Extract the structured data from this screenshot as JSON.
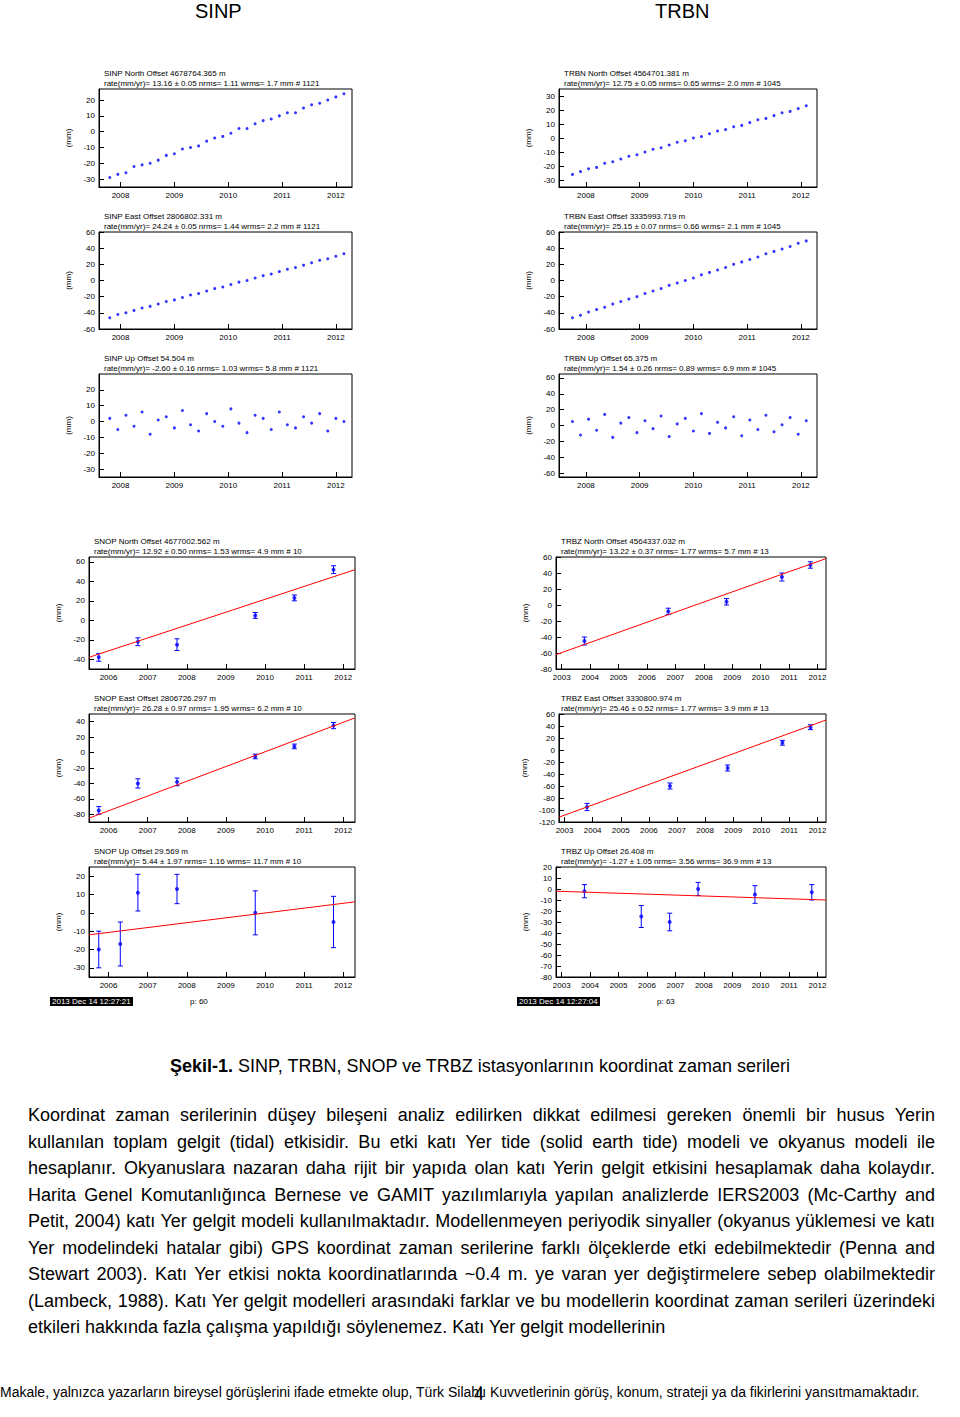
{
  "headers": [
    "SINP",
    "TRBN"
  ],
  "chart_data": [
    {
      "type": "scatter",
      "title": [
        "SINP North Offset 4678764.365 m",
        "rate(mm/yr)= 13.16 ± 0.05 nrms= 1.11 wrms= 1.7 mm # 1121"
      ],
      "y_label": "(mm)",
      "color": "#0000ff",
      "x": [
        2007.8,
        2007.95,
        2008.1,
        2008.25,
        2008.4,
        2008.55,
        2008.7,
        2008.85,
        2009.0,
        2009.15,
        2009.3,
        2009.45,
        2009.6,
        2009.75,
        2009.9,
        2010.05,
        2010.2,
        2010.35,
        2010.5,
        2010.65,
        2010.8,
        2010.95,
        2011.1,
        2011.25,
        2011.4,
        2011.55,
        2011.7,
        2011.85,
        2012.0,
        2012.15
      ],
      "values": [
        -29,
        -27,
        -26,
        -22,
        -21,
        -20,
        -18,
        -15,
        -14,
        -11,
        -10,
        -9,
        -6,
        -4,
        -3,
        -1,
        2,
        2,
        5,
        7,
        8,
        10,
        12,
        12,
        15,
        17,
        18,
        20,
        22,
        24
      ],
      "xlim": [
        2007.6,
        2012.3
      ],
      "xticks": [
        2008,
        2009,
        2010,
        2011,
        2012
      ],
      "ylim": [
        -35,
        27
      ],
      "yticks": [
        -30,
        -20,
        -10,
        0,
        10,
        20
      ]
    },
    {
      "type": "scatter",
      "title": [
        "SINP East Offset 2806802.331 m",
        "rate(mm/yr)= 24.24 ± 0.05 nrms= 1.44 wrms= 2.2 mm # 1121"
      ],
      "y_label": "(mm)",
      "color": "#0000ff",
      "x": [
        2007.8,
        2007.95,
        2008.1,
        2008.25,
        2008.4,
        2008.55,
        2008.7,
        2008.85,
        2009.0,
        2009.15,
        2009.3,
        2009.45,
        2009.6,
        2009.75,
        2009.9,
        2010.05,
        2010.2,
        2010.35,
        2010.5,
        2010.65,
        2010.8,
        2010.95,
        2011.1,
        2011.25,
        2011.4,
        2011.55,
        2011.7,
        2011.85,
        2012.0,
        2012.15
      ],
      "values": [
        -46,
        -42,
        -40,
        -37,
        -34,
        -32,
        -29,
        -26,
        -24,
        -21,
        -18,
        -16,
        -13,
        -10,
        -8,
        -5,
        -2,
        0,
        3,
        6,
        8,
        11,
        14,
        16,
        19,
        22,
        25,
        27,
        30,
        33
      ],
      "xlim": [
        2007.6,
        2012.3
      ],
      "xticks": [
        2008,
        2009,
        2010,
        2011,
        2012
      ],
      "ylim": [
        -60,
        60
      ],
      "yticks": [
        -60,
        -40,
        -20,
        0,
        20,
        40,
        60
      ]
    },
    {
      "type": "scatter",
      "title": [
        "SINP Up Offset 54.504 m",
        "rate(mm/yr)= -2.60 ± 0.16 nrms= 1.03 wrms= 5.8 mm # 1121"
      ],
      "y_label": "(mm)",
      "color": "#0000ff",
      "x": [
        2007.8,
        2007.95,
        2008.1,
        2008.25,
        2008.4,
        2008.55,
        2008.7,
        2008.85,
        2009.0,
        2009.15,
        2009.3,
        2009.45,
        2009.6,
        2009.75,
        2009.9,
        2010.05,
        2010.2,
        2010.35,
        2010.5,
        2010.65,
        2010.8,
        2010.95,
        2011.1,
        2011.25,
        2011.4,
        2011.55,
        2011.7,
        2011.85,
        2012.0,
        2012.15
      ],
      "values": [
        2,
        -5,
        4,
        -3,
        6,
        -8,
        1,
        3,
        -4,
        7,
        -2,
        -6,
        5,
        0,
        -3,
        8,
        -1,
        -7,
        4,
        2,
        -5,
        6,
        -2,
        -4,
        3,
        -1,
        5,
        -6,
        2,
        0
      ],
      "xlim": [
        2007.6,
        2012.3
      ],
      "xticks": [
        2008,
        2009,
        2010,
        2011,
        2012
      ],
      "ylim": [
        -35,
        30
      ],
      "yticks": [
        -30,
        -20,
        -10,
        0,
        10,
        20
      ]
    },
    {
      "type": "scatter",
      "title": [
        "TRBN North Offset 4564701.381 m",
        "rate(mm/yr)= 12.75 ± 0.05 nrms= 0.65 wrms= 2.0 mm # 1045"
      ],
      "y_label": "(mm)",
      "color": "#0000ff",
      "x": [
        2007.75,
        2007.9,
        2008.05,
        2008.2,
        2008.35,
        2008.5,
        2008.65,
        2008.8,
        2008.95,
        2009.1,
        2009.25,
        2009.4,
        2009.55,
        2009.7,
        2009.85,
        2010.0,
        2010.15,
        2010.3,
        2010.45,
        2010.6,
        2010.75,
        2010.9,
        2011.05,
        2011.2,
        2011.35,
        2011.5,
        2011.65,
        2011.8,
        2011.95,
        2012.1
      ],
      "values": [
        -26,
        -24,
        -22,
        -21,
        -18,
        -17,
        -15,
        -13,
        -12,
        -10,
        -8,
        -7,
        -5,
        -3,
        -2,
        0,
        1,
        3,
        5,
        6,
        8,
        9,
        11,
        13,
        14,
        16,
        18,
        19,
        21,
        23
      ],
      "xlim": [
        2007.5,
        2012.3
      ],
      "xticks": [
        2008,
        2009,
        2010,
        2011,
        2012
      ],
      "ylim": [
        -35,
        35
      ],
      "yticks": [
        -30,
        -20,
        -10,
        0,
        10,
        20,
        30
      ]
    },
    {
      "type": "scatter",
      "title": [
        "TRBN East Offset 3335993.719 m",
        "rate(mm/yr)= 25.15 ± 0.07 nrms= 0.66 wrms= 2.1 mm # 1045"
      ],
      "y_label": "(mm)",
      "color": "#0000ff",
      "x": [
        2007.75,
        2007.9,
        2008.05,
        2008.2,
        2008.35,
        2008.5,
        2008.65,
        2008.8,
        2008.95,
        2009.1,
        2009.25,
        2009.4,
        2009.55,
        2009.7,
        2009.85,
        2010.0,
        2010.15,
        2010.3,
        2010.45,
        2010.6,
        2010.75,
        2010.9,
        2011.05,
        2011.2,
        2011.35,
        2011.5,
        2011.65,
        2011.8,
        2011.95,
        2012.1
      ],
      "values": [
        -46,
        -43,
        -39,
        -36,
        -33,
        -29,
        -26,
        -23,
        -20,
        -16,
        -13,
        -10,
        -6,
        -3,
        0,
        3,
        7,
        10,
        13,
        16,
        20,
        23,
        26,
        29,
        33,
        36,
        39,
        42,
        46,
        49
      ],
      "xlim": [
        2007.5,
        2012.3
      ],
      "xticks": [
        2008,
        2009,
        2010,
        2011,
        2012
      ],
      "ylim": [
        -60,
        60
      ],
      "yticks": [
        -60,
        -40,
        -20,
        0,
        20,
        40,
        60
      ]
    },
    {
      "type": "scatter",
      "title": [
        "TRBN Up Offset 65.375 m",
        "rate(mm/yr)= 1.54 ± 0.26 nrms= 0.89 wrms= 6.9 mm # 1045"
      ],
      "y_label": "(mm)",
      "color": "#0000ff",
      "x": [
        2007.75,
        2007.9,
        2008.05,
        2008.2,
        2008.35,
        2008.5,
        2008.65,
        2008.8,
        2008.95,
        2009.1,
        2009.25,
        2009.4,
        2009.55,
        2009.7,
        2009.85,
        2010.0,
        2010.15,
        2010.3,
        2010.45,
        2010.6,
        2010.75,
        2010.9,
        2011.05,
        2011.2,
        2011.35,
        2011.5,
        2011.65,
        2011.8,
        2011.95,
        2012.1
      ],
      "values": [
        5,
        -12,
        8,
        -6,
        14,
        -15,
        3,
        10,
        -9,
        6,
        -4,
        12,
        -14,
        2,
        9,
        -7,
        15,
        -10,
        4,
        -3,
        11,
        -13,
        7,
        -5,
        13,
        -8,
        1,
        10,
        -11,
        6
      ],
      "xlim": [
        2007.5,
        2012.3
      ],
      "xticks": [
        2008,
        2009,
        2010,
        2011,
        2012
      ],
      "ylim": [
        -65,
        65
      ],
      "yticks": [
        -60,
        -40,
        -20,
        0,
        20,
        40,
        60
      ]
    },
    {
      "type": "scatter",
      "title": [
        "SNOP North Offset 4677002.562 m",
        "rate(mm/yr)= 12.92 ± 0.50 nrms= 1.53 wrms= 4.9 mm # 10"
      ],
      "y_label": "(mm)",
      "color": "#0000ff",
      "x": [
        2005.75,
        2006.75,
        2007.75,
        2009.75,
        2010.75,
        2011.75
      ],
      "values": [
        -38,
        -22,
        -25,
        5,
        23,
        52
      ],
      "errors": [
        4,
        4,
        6,
        3,
        3,
        4
      ],
      "trend": {
        "x": [
          2005.5,
          2012.3
        ],
        "values": [
          -38,
          52
        ],
        "color": "#ff0000"
      },
      "xlim": [
        2005.5,
        2012.3
      ],
      "xticks": [
        2006,
        2007,
        2008,
        2009,
        2010,
        2011,
        2012
      ],
      "ylim": [
        -50,
        65
      ],
      "yticks": [
        -40,
        -20,
        0,
        20,
        40,
        60
      ]
    },
    {
      "type": "scatter",
      "title": [
        "SNOP East Offset 2806726.297 m",
        "rate(mm/yr)= 26.28 ± 0.97 nrms= 1.95 wrms= 6.2 mm # 10"
      ],
      "y_label": "(mm)",
      "color": "#0000ff",
      "x": [
        2005.75,
        2006.75,
        2007.75,
        2009.75,
        2010.75,
        2011.75
      ],
      "values": [
        -75,
        -40,
        -38,
        -5,
        8,
        35
      ],
      "errors": [
        5,
        6,
        5,
        3,
        3,
        4
      ],
      "trend": {
        "x": [
          2005.5,
          2012.3
        ],
        "values": [
          -85,
          45
        ],
        "color": "#ff0000"
      },
      "xlim": [
        2005.5,
        2012.3
      ],
      "xticks": [
        2006,
        2007,
        2008,
        2009,
        2010,
        2011,
        2012
      ],
      "ylim": [
        -90,
        50
      ],
      "yticks": [
        -80,
        -60,
        -40,
        -20,
        0,
        20,
        40
      ]
    },
    {
      "type": "scatter",
      "title": [
        "SNOP Up Offset 29.569 m",
        "rate(mm/yr)= 5.44 ± 1.97 nrms= 1.16 wrms= 11.7 mm # 10"
      ],
      "y_label": "(mm)",
      "color": "#0000ff",
      "x": [
        2005.75,
        2006.3,
        2006.75,
        2007.75,
        2009.75,
        2011.75
      ],
      "values": [
        -20,
        -17,
        11,
        13,
        0,
        -5
      ],
      "errors": [
        10,
        12,
        10,
        8,
        12,
        14
      ],
      "trend": {
        "x": [
          2005.5,
          2012.3
        ],
        "values": [
          -12,
          6
        ],
        "color": "#ff0000"
      },
      "xlim": [
        2005.5,
        2012.3
      ],
      "xticks": [
        2006,
        2007,
        2008,
        2009,
        2010,
        2011,
        2012
      ],
      "ylim": [
        -35,
        25
      ],
      "yticks": [
        -30,
        -20,
        -10,
        0,
        10,
        20
      ]
    },
    {
      "type": "scatter",
      "title": [
        "TRBZ North Offset 4564337.032 m",
        "rate(mm/yr)= 13.22 ± 0.37 nrms= 1.77 wrms= 5.7 mm # 13"
      ],
      "y_label": "(mm)",
      "color": "#0000ff",
      "x": [
        2003.8,
        2006.75,
        2008.8,
        2010.75,
        2011.75
      ],
      "values": [
        -45,
        -8,
        4,
        35,
        50
      ],
      "errors": [
        5,
        4,
        4,
        5,
        4
      ],
      "trend": {
        "x": [
          2002.8,
          2012.3
        ],
        "values": [
          -62,
          58
        ],
        "color": "#ff0000"
      },
      "xlim": [
        2002.8,
        2012.3
      ],
      "xticks": [
        2003,
        2004,
        2005,
        2006,
        2007,
        2008,
        2009,
        2010,
        2011,
        2012
      ],
      "ylim": [
        -80,
        60
      ],
      "yticks": [
        -80,
        -60,
        -40,
        -20,
        0,
        20,
        40,
        60
      ]
    },
    {
      "type": "scatter",
      "title": [
        "TRBZ East Offset 3330800.974 m",
        "rate(mm/yr)= 25.46 ± 0.52 nrms= 1.77 wrms= 3.9 mm # 13"
      ],
      "y_label": "(mm)",
      "color": "#0000ff",
      "x": [
        2003.8,
        2006.75,
        2008.8,
        2010.75,
        2011.75
      ],
      "values": [
        -95,
        -60,
        -30,
        12,
        38
      ],
      "errors": [
        6,
        5,
        5,
        4,
        4
      ],
      "trend": {
        "x": [
          2002.8,
          2012.3
        ],
        "values": [
          -112,
          50
        ],
        "color": "#ff0000"
      },
      "xlim": [
        2002.8,
        2012.3
      ],
      "xticks": [
        2003,
        2004,
        2005,
        2006,
        2007,
        2008,
        2009,
        2010,
        2011,
        2012
      ],
      "ylim": [
        -120,
        60
      ],
      "yticks": [
        -120,
        -100,
        -80,
        -60,
        -40,
        -20,
        0,
        20,
        40,
        60
      ]
    },
    {
      "type": "scatter",
      "title": [
        "TRBZ Up Offset 26.408 m",
        "rate(mm/yr)= -1.27 ± 1.05 nrms= 3.56 wrms= 36.9 mm # 13"
      ],
      "y_label": "(mm)",
      "color": "#0000ff",
      "x": [
        2003.8,
        2005.8,
        2006.8,
        2007.8,
        2009.8,
        2011.8
      ],
      "values": [
        -2,
        -25,
        -30,
        0,
        -5,
        -3
      ],
      "errors": [
        6,
        10,
        8,
        6,
        8,
        7
      ],
      "trend": {
        "x": [
          2002.8,
          2012.3
        ],
        "values": [
          -2,
          -10
        ],
        "color": "#ff0000"
      },
      "xlim": [
        2002.8,
        2012.3
      ],
      "xticks": [
        2003,
        2004,
        2005,
        2006,
        2007,
        2008,
        2009,
        2010,
        2011,
        2012
      ],
      "ylim": [
        -80,
        20
      ],
      "yticks": [
        -80,
        -70,
        -60,
        -50,
        -40,
        -30,
        -20,
        -10,
        0,
        10,
        20
      ]
    }
  ],
  "stamps": [
    [
      "2013 Dec 14 12:27:21",
      "p: 60"
    ],
    [
      "2013 Dec 14 12:27:04",
      "p: 63"
    ]
  ],
  "caption": {
    "label": "Şekil-1.",
    "text": " SINP, TRBN, SNOP ve TRBZ istasyonlarının koordinat zaman serileri"
  },
  "body": "Koordinat zaman serilerinin düşey bileşeni analiz edilirken dikkat edilmesi gereken önemli bir husus Yerin kullanılan toplam gelgit (tidal) etkisidir. Bu etki katı Yer tide (solid earth tide) modeli ve okyanus modeli ile hesaplanır. Okyanuslara nazaran daha rijit bir yapıda olan katı Yerin gelgit etkisini hesaplamak daha kolaydır. Harita Genel Komutanlığınca Bernese ve GAMIT yazılımlarıyla yapılan analizlerde IERS2003 (Mc-Carthy and Petit, 2004) katı Yer gelgit modeli kullanılmaktadır. Modellenmeyen periyodik sinyaller (okyanus yüklemesi ve katı Yer modelindeki hatalar gibi) GPS koordinat zaman serilerine farklı ölçeklerde etki edebilmektedir (Penna and Stewart 2003). Katı Yer etkisi nokta koordinatlarında ~0.4 m. ye varan yer değiştirmelere sebep olabilmektedir (Lambeck, 1988). Katı Yer gelgit modelleri arasındaki farklar ve bu modellerin koordinat zaman serileri üzerindeki etkileri hakkında fazla çalışma yapıldığı söylenemez. Katı Yer gelgit modellerinin",
  "footer": "Makale, yalnızca yazarların bireysel görüşlerini ifade etmekte olup, Türk Silahlı Kuvvetlerinin görüş, konum, strateji ya da fikirlerini yansıtmamaktadır.",
  "page_number": "4"
}
